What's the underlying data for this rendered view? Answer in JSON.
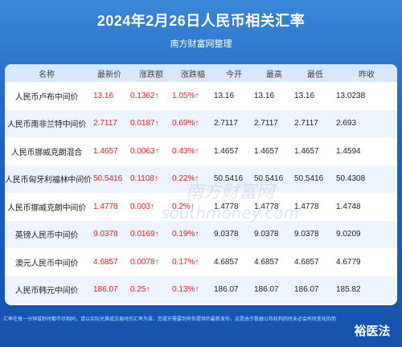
{
  "title": "2024年2月26日人民币相关汇率",
  "subtitle": "南方财富网整理",
  "headers": [
    "名称",
    "最新价",
    "涨跌额",
    "涨跌幅",
    "今开",
    "最高",
    "最低",
    "昨收"
  ],
  "rows": [
    {
      "name": "人民币卢布中间价",
      "latest": "13.16",
      "change": "0.1362↑",
      "pct": "1.05%↑",
      "open": "13.16",
      "high": "13.16",
      "low": "13.16",
      "prev": "13.0238"
    },
    {
      "name": "人民币南非兰特中间价",
      "latest": "2.7117",
      "change": "0.0187↑",
      "pct": "0.69%↑",
      "open": "2.7117",
      "high": "2.7117",
      "low": "2.7117",
      "prev": "2.693"
    },
    {
      "name": "人民币挪威克朗混合",
      "latest": "1.4657",
      "change": "0.0063↑",
      "pct": "0.43%↑",
      "open": "1.4657",
      "high": "1.4657",
      "low": "1.4657",
      "prev": "1.4594"
    },
    {
      "name": "人民币匈牙利福林中间价",
      "latest": "50.5416",
      "change": "0.1108↑",
      "pct": "0.22%↑",
      "open": "50.5416",
      "high": "50.5416",
      "low": "50.5416",
      "prev": "50.4308"
    },
    {
      "name": "人民币挪威克朗中间价",
      "latest": "1.4778",
      "change": "0.003↑",
      "pct": "0.2%↑",
      "open": "1.4778",
      "high": "1.4778",
      "low": "1.4778",
      "prev": "1.4748"
    },
    {
      "name": "英镑人民币中间价",
      "latest": "9.0378",
      "change": "0.0169↑",
      "pct": "0.19%↑",
      "open": "9.0378",
      "high": "9.0378",
      "low": "9.0378",
      "prev": "9.0209"
    },
    {
      "name": "澳元人民币中间价",
      "latest": "4.6857",
      "change": "0.0078↑",
      "pct": "0.17%↑",
      "open": "4.6857",
      "high": "4.6857",
      "low": "4.6857",
      "prev": "4.6779"
    },
    {
      "name": "人民币韩元中间价",
      "latest": "186.07",
      "change": "0.25↑",
      "pct": "0.13%↑",
      "open": "186.07",
      "high": "186.07",
      "low": "186.07",
      "prev": "185.82"
    }
  ],
  "watermark": {
    "cn": "南方财富网",
    "en": "southmoney.com"
  },
  "footer": "汇率在每一分钟或秒时都不尽相同，请以实际兑换或交易时的汇率为准，您或许需要到有你提供的最新发布，这是由于数据公布机构的时未必会有时变化的而",
  "corner_logo": "裕医法",
  "colors": {
    "accent_red": "#e02020",
    "header_bg": "#d9e7fb",
    "stripe_bg": "#eef4fd",
    "page_bg": "#1f63c0"
  }
}
